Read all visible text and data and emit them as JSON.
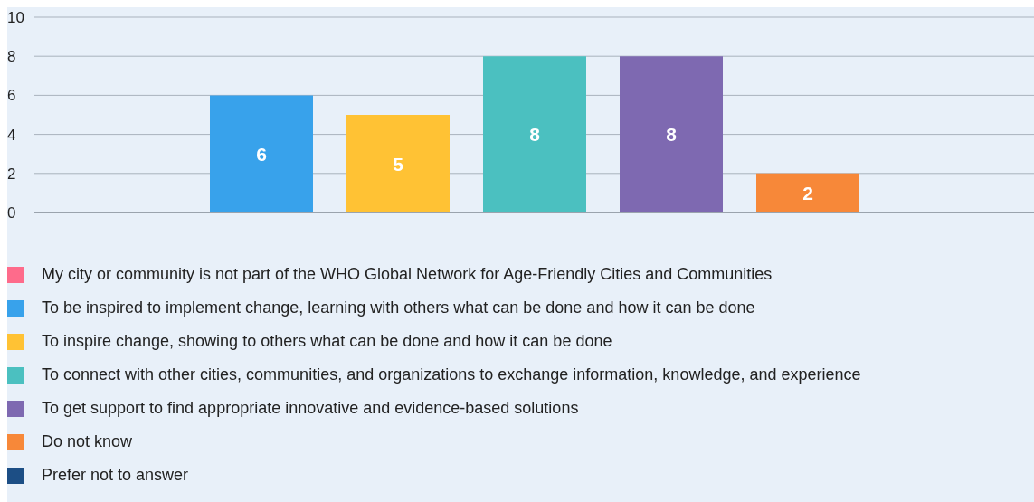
{
  "chart_data": {
    "type": "bar",
    "categories": [
      null
    ],
    "series": [
      {
        "name": "My city or community is not part of the WHO Global Network for Age-Friendly Cities and Communities",
        "color": "#fe6b8b",
        "values": [
          0
        ],
        "value_labels": [
          null
        ]
      },
      {
        "name": "To be inspired to implement change, learning with others what can be done and how it can be done",
        "color": "#38a2eb",
        "values": [
          6
        ],
        "value_labels": [
          "6"
        ]
      },
      {
        "name": "To inspire change, showing to others what can be done and how it can be done",
        "color": "#ffc234",
        "values": [
          5
        ],
        "value_labels": [
          "5"
        ]
      },
      {
        "name": "To connect with other cities, communities, and organizations to exchange information, knowledge, and experience",
        "color": "#4bc0c0",
        "values": [
          8
        ],
        "value_labels": [
          "8"
        ]
      },
      {
        "name": "To get support to find appropriate innovative and evidence-based solutions",
        "color": "#7e69b1",
        "values": [
          8
        ],
        "value_labels": [
          "8"
        ]
      },
      {
        "name": "Do not know",
        "color": "#f78839",
        "values": [
          2
        ],
        "value_labels": [
          "2"
        ]
      },
      {
        "name": "Prefer not to answer",
        "color": "#1c4e85",
        "values": [
          0
        ],
        "value_labels": [
          null
        ]
      }
    ],
    "ylim": [
      0,
      10
    ],
    "yticks": [
      0,
      2,
      4,
      6,
      8,
      10
    ],
    "grid": "y",
    "legend": "bottom"
  }
}
